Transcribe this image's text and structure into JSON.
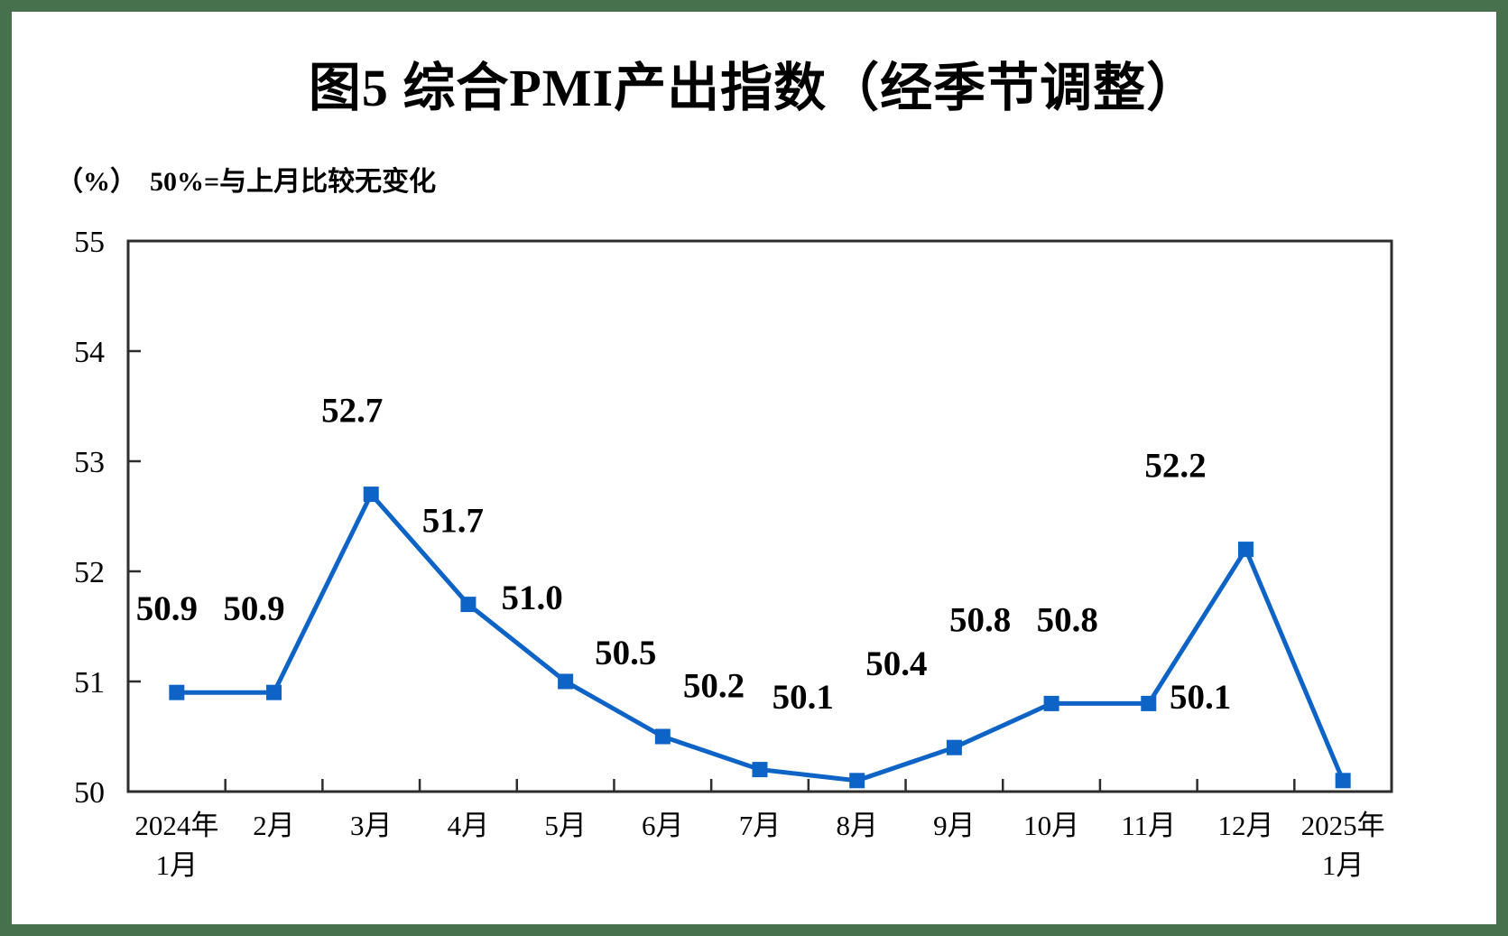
{
  "title": "图5 综合PMI产出指数（经季节调整）",
  "subtitle": {
    "unit_label": "（%）",
    "note": "50%=与上月比较无变化"
  },
  "colors": {
    "frame": "#47704D",
    "axis": "#2d2d2d",
    "line": "#0D64C6",
    "text": "#000000"
  },
  "chart_data": {
    "type": "line",
    "title": "图5 综合PMI产出指数（经季节调整）",
    "unit_label": "（%）",
    "note": "50%=与上月比较无变化",
    "categories": [
      "2024年\n1月",
      "2月",
      "3月",
      "4月",
      "5月",
      "6月",
      "7月",
      "8月",
      "9月",
      "10月",
      "11月",
      "12月",
      "2025年\n1月"
    ],
    "series": [
      {
        "name": "综合PMI产出指数",
        "values": [
          50.9,
          50.9,
          52.7,
          51.7,
          51.0,
          50.5,
          50.2,
          50.1,
          50.4,
          50.8,
          50.8,
          52.2,
          50.1
        ]
      }
    ],
    "data_labels": [
      "50.9",
      "50.9",
      "52.7",
      "51.7",
      "51.0",
      "50.5",
      "50.2",
      "50.1",
      "50.4",
      "50.8",
      "50.8",
      "52.2",
      "50.1"
    ],
    "ylim": [
      50,
      55
    ],
    "yticks": [
      50,
      51,
      52,
      53,
      54,
      55
    ],
    "xlabel": "",
    "ylabel": "",
    "grid": false,
    "legend": "none",
    "marker": "square",
    "line_color": "#0D64C6"
  }
}
